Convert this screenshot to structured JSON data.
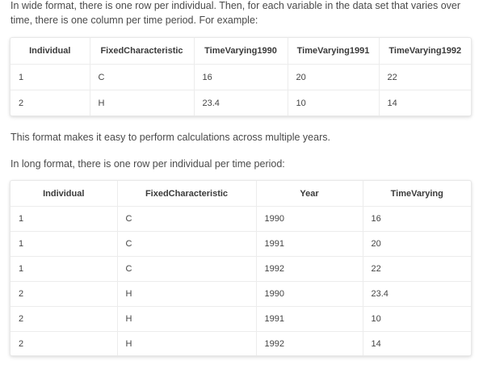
{
  "intro_text": "In wide format, there is one row per individual. Then, for each variable in the data set that varies over time, there is one column per time period. For example:",
  "calc_text": "This format makes it easy to perform calculations across multiple years.",
  "long_intro_text": "In long format, there is one row per individual per time period:",
  "wide_table": {
    "headers": [
      "Individual",
      "FixedCharacteristic",
      "TimeVarying1990",
      "TimeVarying1991",
      "TimeVarying1992"
    ],
    "rows": [
      [
        "1",
        "C",
        "16",
        "20",
        "22"
      ],
      [
        "2",
        "H",
        "23.4",
        "10",
        "14"
      ]
    ]
  },
  "long_table": {
    "headers": [
      "Individual",
      "FixedCharacteristic",
      "Year",
      "TimeVarying"
    ],
    "rows": [
      [
        "1",
        "C",
        "1990",
        "16"
      ],
      [
        "1",
        "C",
        "1991",
        "20"
      ],
      [
        "1",
        "C",
        "1992",
        "22"
      ],
      [
        "2",
        "H",
        "1990",
        "23.4"
      ],
      [
        "2",
        "H",
        "1991",
        "10"
      ],
      [
        "2",
        "H",
        "1992",
        "14"
      ]
    ]
  }
}
